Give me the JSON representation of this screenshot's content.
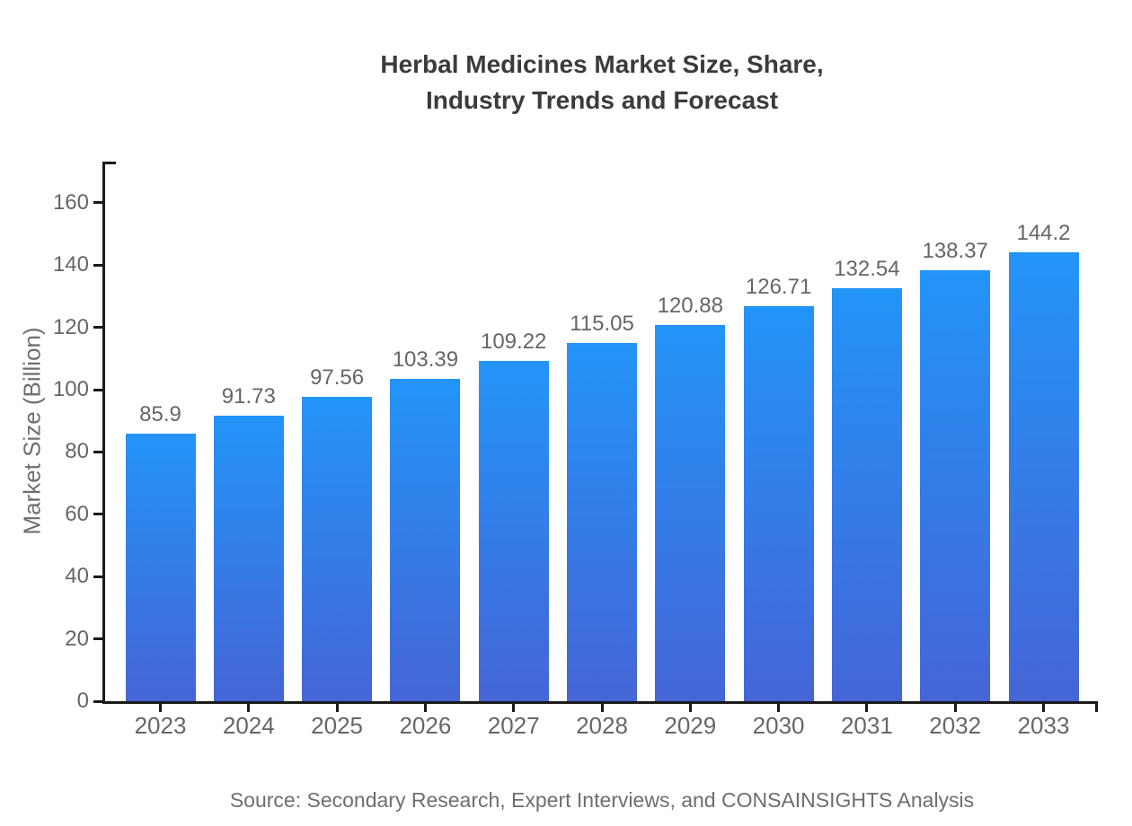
{
  "chart_data": {
    "type": "bar",
    "title_lines": [
      "Herbal Medicines Market Size, Share,",
      "Industry Trends and Forecast"
    ],
    "categories": [
      "2023",
      "2024",
      "2025",
      "2026",
      "2027",
      "2028",
      "2029",
      "2030",
      "2031",
      "2032",
      "2033"
    ],
    "values": [
      85.9,
      91.73,
      97.56,
      103.39,
      109.22,
      115.05,
      120.88,
      126.71,
      132.54,
      138.37,
      144.2
    ],
    "ylabel": "Market Size (Billion)",
    "xlabel": "",
    "yticks": [
      0,
      20,
      40,
      60,
      80,
      100,
      120,
      140,
      160
    ],
    "ylim": [
      0,
      173
    ],
    "grid": false,
    "legend": "none",
    "value_labels_shown": true,
    "source": "Source: Secondary Research, Expert Interviews, and CONSAINSIGHTS Analysis",
    "colors": {
      "bar_gradient_top": "#2394f8",
      "bar_gradient_bottom": "#4565d6",
      "title_text": "#3b3b3b",
      "tick_text": "#666666",
      "axis_line": "#1a1a1a"
    }
  }
}
